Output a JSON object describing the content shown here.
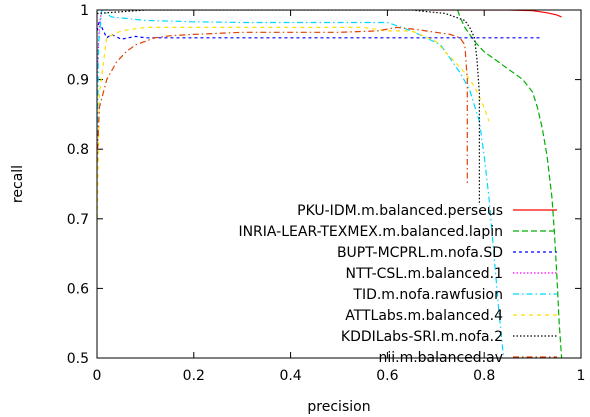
{
  "chart_data": {
    "type": "line",
    "title": "",
    "xlabel": "precision",
    "ylabel": "recall",
    "xlim": [
      0,
      1
    ],
    "ylim": [
      0.5,
      1
    ],
    "xticks": [
      "0",
      "0.2",
      "0.4",
      "0.6",
      "0.8",
      "1"
    ],
    "yticks": [
      "0.5",
      "0.6",
      "0.7",
      "0.8",
      "0.9",
      "1"
    ],
    "grid": false,
    "legend_position": "inside-bottom-right",
    "series": [
      {
        "name": "PKU-IDM.m.balanced.perseus",
        "color": "#ff0000",
        "dash": "solid",
        "points": [
          [
            0.69,
            1.0
          ],
          [
            0.75,
            1.0
          ],
          [
            0.8,
            1.0
          ],
          [
            0.85,
            1.0
          ],
          [
            0.9,
            0.999
          ],
          [
            0.93,
            0.996
          ],
          [
            0.95,
            0.993
          ],
          [
            0.96,
            0.99
          ]
        ]
      },
      {
        "name": "INRIA-LEAR-TEXMEX.m.balanced.lapin",
        "color": "#00b000",
        "dash": "long",
        "points": [
          [
            0.745,
            1.0
          ],
          [
            0.75,
            0.99
          ],
          [
            0.76,
            0.975
          ],
          [
            0.78,
            0.955
          ],
          [
            0.8,
            0.94
          ],
          [
            0.82,
            0.93
          ],
          [
            0.84,
            0.92
          ],
          [
            0.86,
            0.91
          ],
          [
            0.88,
            0.9
          ],
          [
            0.9,
            0.882
          ],
          [
            0.91,
            0.86
          ],
          [
            0.92,
            0.83
          ],
          [
            0.93,
            0.79
          ],
          [
            0.935,
            0.76
          ],
          [
            0.94,
            0.73
          ],
          [
            0.945,
            0.68
          ],
          [
            0.95,
            0.62
          ],
          [
            0.955,
            0.55
          ],
          [
            0.96,
            0.5
          ]
        ]
      },
      {
        "name": "BUPT-MCPRL.m.nofa.SD",
        "color": "#0000ff",
        "dash": "short",
        "points": [
          [
            0.0,
            0.97
          ],
          [
            0.005,
            0.985
          ],
          [
            0.01,
            0.975
          ],
          [
            0.02,
            0.96
          ],
          [
            0.03,
            0.965
          ],
          [
            0.05,
            0.958
          ],
          [
            0.08,
            0.962
          ],
          [
            0.1,
            0.96
          ],
          [
            0.2,
            0.96
          ],
          [
            0.4,
            0.96
          ],
          [
            0.6,
            0.96
          ],
          [
            0.8,
            0.96
          ],
          [
            0.92,
            0.96
          ]
        ]
      },
      {
        "name": "NTT-CSL.m.balanced.1",
        "color": "#ff00ff",
        "dash": "dotted",
        "points": [
          [
            0.0,
            0.9
          ],
          [
            0.005,
            0.98
          ],
          [
            0.01,
            1.0
          ],
          [
            0.02,
            1.0
          ],
          [
            0.03,
            1.0
          ]
        ]
      },
      {
        "name": "TID.m.nofa.rawfusion",
        "color": "#00d8ff",
        "dash": "dashdot",
        "points": [
          [
            0.0,
            0.78
          ],
          [
            0.003,
            0.95
          ],
          [
            0.01,
            1.0
          ],
          [
            0.03,
            0.99
          ],
          [
            0.1,
            0.985
          ],
          [
            0.2,
            0.983
          ],
          [
            0.3,
            0.982
          ],
          [
            0.4,
            0.982
          ],
          [
            0.5,
            0.982
          ],
          [
            0.6,
            0.982
          ],
          [
            0.65,
            0.97
          ],
          [
            0.68,
            0.96
          ],
          [
            0.71,
            0.95
          ],
          [
            0.73,
            0.93
          ],
          [
            0.75,
            0.91
          ],
          [
            0.77,
            0.885
          ],
          [
            0.79,
            0.84
          ],
          [
            0.8,
            0.79
          ],
          [
            0.81,
            0.73
          ],
          [
            0.82,
            0.65
          ],
          [
            0.83,
            0.57
          ],
          [
            0.84,
            0.5
          ]
        ]
      },
      {
        "name": "ATTLabs.m.balanced.4",
        "color": "#ffdd00",
        "dash": "dashed",
        "points": [
          [
            0.0,
            0.69
          ],
          [
            0.005,
            0.88
          ],
          [
            0.02,
            0.96
          ],
          [
            0.05,
            0.97
          ],
          [
            0.1,
            0.975
          ],
          [
            0.2,
            0.975
          ],
          [
            0.4,
            0.975
          ],
          [
            0.55,
            0.975
          ],
          [
            0.6,
            0.97
          ],
          [
            0.65,
            0.97
          ],
          [
            0.7,
            0.955
          ],
          [
            0.72,
            0.94
          ],
          [
            0.74,
            0.925
          ],
          [
            0.76,
            0.91
          ],
          [
            0.78,
            0.89
          ],
          [
            0.8,
            0.86
          ],
          [
            0.81,
            0.84
          ]
        ]
      },
      {
        "name": "KDDILabs-SRI.m.nofa.2",
        "color": "#000000",
        "dash": "dotted",
        "points": [
          [
            0.0,
            0.995
          ],
          [
            0.1,
            1.0
          ],
          [
            0.3,
            1.0
          ],
          [
            0.5,
            1.0
          ],
          [
            0.65,
            1.0
          ],
          [
            0.72,
            0.995
          ],
          [
            0.74,
            0.99
          ],
          [
            0.76,
            0.985
          ],
          [
            0.77,
            0.975
          ],
          [
            0.78,
            0.96
          ],
          [
            0.785,
            0.93
          ],
          [
            0.79,
            0.88
          ],
          [
            0.79,
            0.8
          ],
          [
            0.79,
            0.72
          ]
        ]
      },
      {
        "name": "nii.m.balanced.av",
        "color": "#e04000",
        "dash": "dashdot",
        "points": [
          [
            0.0,
            0.78
          ],
          [
            0.005,
            0.86
          ],
          [
            0.02,
            0.9
          ],
          [
            0.04,
            0.925
          ],
          [
            0.06,
            0.94
          ],
          [
            0.08,
            0.95
          ],
          [
            0.1,
            0.955
          ],
          [
            0.12,
            0.96
          ],
          [
            0.15,
            0.963
          ],
          [
            0.2,
            0.965
          ],
          [
            0.3,
            0.968
          ],
          [
            0.4,
            0.968
          ],
          [
            0.5,
            0.968
          ],
          [
            0.58,
            0.97
          ],
          [
            0.62,
            0.975
          ],
          [
            0.66,
            0.972
          ],
          [
            0.7,
            0.968
          ],
          [
            0.73,
            0.965
          ],
          [
            0.75,
            0.96
          ],
          [
            0.76,
            0.95
          ],
          [
            0.765,
            0.9
          ],
          [
            0.765,
            0.75
          ]
        ]
      }
    ]
  }
}
